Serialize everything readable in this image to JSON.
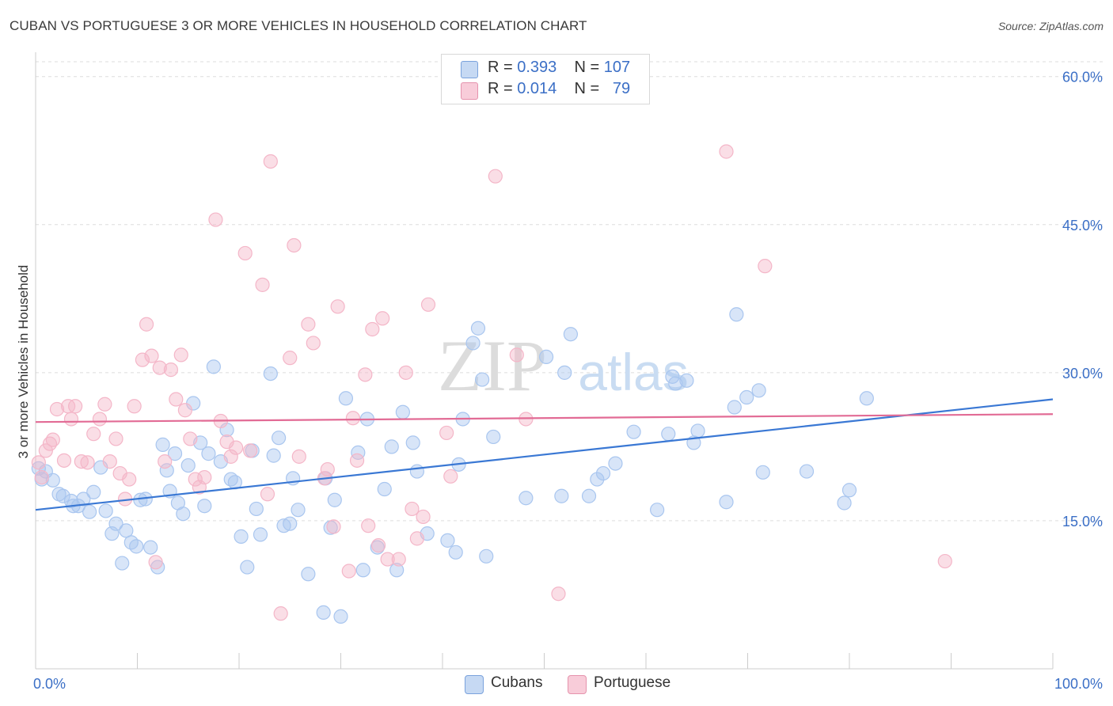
{
  "title": "CUBAN VS PORTUGUESE 3 OR MORE VEHICLES IN HOUSEHOLD CORRELATION CHART",
  "source": "Source: ZipAtlas.com",
  "watermark": {
    "zip": "ZIP",
    "atlas": "atlas"
  },
  "legend": {
    "r_label": "R =",
    "n_label": "N =",
    "rows": [
      {
        "r": "0.393",
        "n": "107",
        "color": "#a9c6ef"
      },
      {
        "r": "0.014",
        "n": "79",
        "color": "#f4b6c8"
      }
    ]
  },
  "chart_data": {
    "type": "scatter",
    "title": "CUBAN VS PORTUGUESE 3 OR MORE VEHICLES IN HOUSEHOLD CORRELATION CHART",
    "xlabel": "",
    "ylabel": "3 or more Vehicles in Household",
    "xlim": [
      0,
      100
    ],
    "ylim": [
      0,
      60
    ],
    "x_tick_labels": [
      "0.0%",
      "100.0%"
    ],
    "y_ticks": [
      15,
      30,
      45,
      60
    ],
    "y_tick_labels": [
      "15.0%",
      "30.0%",
      "45.0%",
      "60.0%"
    ],
    "grid": true,
    "series": [
      {
        "name": "Cubans",
        "color": "#3a78d4",
        "fill": "#a9c6ef",
        "R": 0.393,
        "N": 107,
        "trend": [
          [
            0,
            16.1
          ],
          [
            100,
            27.3
          ]
        ],
        "points": [
          [
            0.3,
            20.3
          ],
          [
            0.6,
            19.2
          ],
          [
            1.0,
            20.0
          ],
          [
            1.7,
            19.1
          ],
          [
            2.3,
            17.7
          ],
          [
            2.7,
            17.5
          ],
          [
            3.5,
            17.0
          ],
          [
            3.7,
            16.5
          ],
          [
            4.2,
            16.5
          ],
          [
            4.7,
            17.2
          ],
          [
            5.3,
            15.9
          ],
          [
            5.7,
            17.9
          ],
          [
            6.4,
            20.4
          ],
          [
            6.9,
            16.0
          ],
          [
            7.5,
            13.7
          ],
          [
            7.9,
            14.7
          ],
          [
            8.5,
            10.7
          ],
          [
            8.9,
            14.0
          ],
          [
            9.4,
            12.8
          ],
          [
            9.9,
            12.4
          ],
          [
            10.3,
            17.1
          ],
          [
            10.8,
            17.2
          ],
          [
            11.3,
            12.3
          ],
          [
            12.0,
            10.3
          ],
          [
            12.5,
            22.7
          ],
          [
            12.9,
            20.1
          ],
          [
            13.2,
            18.0
          ],
          [
            13.7,
            21.8
          ],
          [
            14.0,
            16.8
          ],
          [
            14.5,
            15.7
          ],
          [
            15.0,
            20.6
          ],
          [
            15.5,
            26.9
          ],
          [
            16.2,
            22.9
          ],
          [
            16.6,
            16.5
          ],
          [
            17.0,
            21.8
          ],
          [
            17.5,
            30.6
          ],
          [
            18.2,
            21.0
          ],
          [
            18.8,
            24.2
          ],
          [
            19.2,
            19.2
          ],
          [
            19.6,
            18.9
          ],
          [
            20.2,
            13.4
          ],
          [
            20.8,
            10.3
          ],
          [
            21.3,
            22.1
          ],
          [
            21.7,
            16.2
          ],
          [
            22.1,
            13.6
          ],
          [
            23.1,
            29.9
          ],
          [
            23.4,
            21.6
          ],
          [
            23.9,
            23.4
          ],
          [
            24.4,
            14.5
          ],
          [
            25.0,
            14.7
          ],
          [
            25.3,
            19.3
          ],
          [
            25.8,
            16.1
          ],
          [
            26.8,
            9.6
          ],
          [
            28.3,
            5.7
          ],
          [
            28.5,
            19.3
          ],
          [
            29.0,
            14.3
          ],
          [
            29.4,
            17.1
          ],
          [
            30.0,
            5.3
          ],
          [
            30.5,
            27.4
          ],
          [
            31.7,
            21.9
          ],
          [
            32.2,
            10.0
          ],
          [
            32.6,
            25.3
          ],
          [
            33.6,
            12.3
          ],
          [
            34.3,
            18.2
          ],
          [
            35.0,
            22.5
          ],
          [
            35.5,
            10.0
          ],
          [
            36.1,
            26.0
          ],
          [
            37.1,
            22.9
          ],
          [
            37.5,
            20.0
          ],
          [
            38.5,
            13.7
          ],
          [
            40.5,
            13.0
          ],
          [
            41.3,
            11.8
          ],
          [
            41.6,
            20.7
          ],
          [
            42.0,
            25.3
          ],
          [
            43.0,
            33.0
          ],
          [
            43.5,
            34.5
          ],
          [
            43.9,
            29.3
          ],
          [
            44.3,
            11.4
          ],
          [
            45.0,
            23.5
          ],
          [
            48.2,
            17.3
          ],
          [
            50.2,
            31.6
          ],
          [
            51.7,
            17.5
          ],
          [
            52.0,
            30.0
          ],
          [
            52.6,
            33.9
          ],
          [
            54.4,
            17.5
          ],
          [
            55.2,
            19.2
          ],
          [
            55.8,
            19.8
          ],
          [
            57.0,
            20.8
          ],
          [
            58.8,
            24.0
          ],
          [
            61.1,
            16.1
          ],
          [
            62.2,
            23.8
          ],
          [
            62.6,
            29.6
          ],
          [
            62.9,
            28.9
          ],
          [
            64.0,
            29.2
          ],
          [
            64.7,
            22.9
          ],
          [
            65.1,
            24.1
          ],
          [
            67.9,
            16.9
          ],
          [
            68.7,
            26.5
          ],
          [
            68.9,
            35.9
          ],
          [
            69.9,
            27.5
          ],
          [
            71.1,
            28.2
          ],
          [
            71.5,
            19.9
          ],
          [
            75.8,
            20.0
          ],
          [
            79.5,
            16.8
          ],
          [
            80.0,
            18.1
          ],
          [
            81.7,
            27.4
          ]
        ]
      },
      {
        "name": "Portuguese",
        "color": "#e26b95",
        "fill": "#f4b6c8",
        "R": 0.014,
        "N": 79,
        "trend": [
          [
            0,
            25.0
          ],
          [
            100,
            25.8
          ]
        ],
        "points": [
          [
            0.3,
            20.9
          ],
          [
            0.6,
            19.4
          ],
          [
            1.0,
            22.1
          ],
          [
            1.4,
            22.8
          ],
          [
            1.7,
            23.2
          ],
          [
            2.1,
            26.3
          ],
          [
            2.8,
            21.1
          ],
          [
            3.2,
            26.6
          ],
          [
            3.5,
            25.3
          ],
          [
            3.9,
            26.6
          ],
          [
            4.5,
            21.0
          ],
          [
            5.1,
            20.9
          ],
          [
            5.7,
            23.8
          ],
          [
            6.3,
            25.3
          ],
          [
            6.8,
            26.8
          ],
          [
            7.3,
            21.0
          ],
          [
            7.9,
            23.3
          ],
          [
            8.3,
            19.8
          ],
          [
            8.8,
            17.2
          ],
          [
            9.2,
            19.2
          ],
          [
            9.7,
            26.6
          ],
          [
            10.5,
            31.3
          ],
          [
            10.9,
            34.9
          ],
          [
            11.4,
            31.7
          ],
          [
            11.8,
            10.8
          ],
          [
            12.2,
            30.5
          ],
          [
            12.7,
            21.0
          ],
          [
            13.3,
            30.3
          ],
          [
            13.8,
            27.3
          ],
          [
            14.3,
            31.8
          ],
          [
            14.7,
            26.2
          ],
          [
            15.2,
            23.3
          ],
          [
            15.7,
            19.2
          ],
          [
            16.1,
            18.4
          ],
          [
            16.6,
            19.4
          ],
          [
            17.7,
            45.5
          ],
          [
            18.2,
            25.1
          ],
          [
            18.8,
            23.0
          ],
          [
            19.2,
            21.5
          ],
          [
            19.7,
            22.4
          ],
          [
            20.6,
            42.1
          ],
          [
            21.1,
            22.1
          ],
          [
            22.3,
            38.9
          ],
          [
            22.8,
            17.7
          ],
          [
            23.1,
            51.4
          ],
          [
            24.1,
            5.6
          ],
          [
            25.0,
            31.5
          ],
          [
            25.4,
            42.9
          ],
          [
            25.9,
            21.5
          ],
          [
            26.8,
            34.9
          ],
          [
            27.3,
            33.0
          ],
          [
            28.4,
            19.3
          ],
          [
            28.7,
            20.2
          ],
          [
            29.3,
            14.4
          ],
          [
            29.7,
            36.7
          ],
          [
            30.8,
            9.9
          ],
          [
            31.2,
            25.4
          ],
          [
            31.6,
            21.1
          ],
          [
            32.4,
            29.8
          ],
          [
            32.7,
            14.5
          ],
          [
            33.1,
            34.4
          ],
          [
            33.7,
            12.5
          ],
          [
            34.1,
            35.5
          ],
          [
            34.6,
            11.1
          ],
          [
            35.7,
            11.1
          ],
          [
            36.4,
            30.0
          ],
          [
            37.0,
            16.2
          ],
          [
            37.5,
            13.2
          ],
          [
            38.1,
            15.4
          ],
          [
            38.6,
            36.9
          ],
          [
            40.4,
            23.9
          ],
          [
            40.8,
            19.5
          ],
          [
            45.2,
            49.9
          ],
          [
            47.3,
            31.8
          ],
          [
            48.2,
            25.3
          ],
          [
            51.4,
            7.6
          ],
          [
            67.9,
            52.4
          ],
          [
            71.7,
            40.8
          ],
          [
            89.4,
            10.9
          ]
        ]
      }
    ]
  }
}
